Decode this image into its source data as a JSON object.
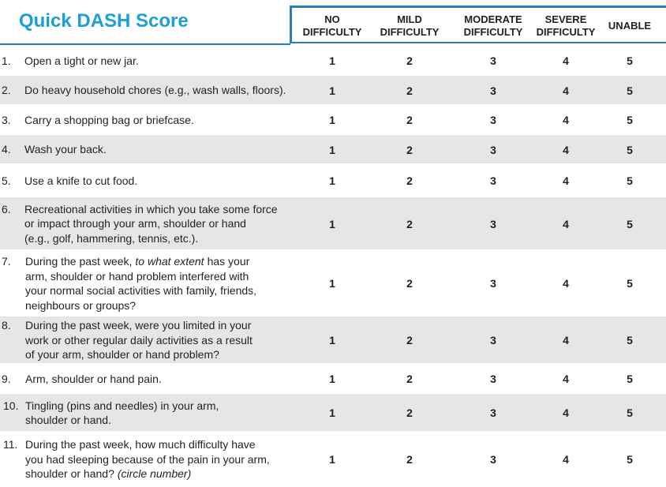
{
  "header": {
    "title": "Quick DASH Score",
    "columns": [
      [
        "NO",
        "DIFFICULTY"
      ],
      [
        "MILD",
        "DIFFICULTY"
      ],
      [
        "MODERATE",
        "DIFFICULTY"
      ],
      [
        "SEVERE",
        "DIFFICULTY"
      ],
      [
        "UNABLE"
      ]
    ]
  },
  "table": {
    "rows": [
      {
        "number": "1.",
        "lines": [
          [
            "Open a tight or new jar."
          ]
        ],
        "values": [
          1,
          2,
          3,
          4,
          5
        ]
      },
      {
        "number": "2.",
        "lines": [
          [
            "Do heavy household chores (e.g., wash walls, floors)."
          ]
        ],
        "values": [
          1,
          2,
          3,
          4,
          5
        ]
      },
      {
        "number": "3.",
        "lines": [
          [
            "Carry a shopping bag or briefcase."
          ]
        ],
        "values": [
          1,
          2,
          3,
          4,
          5
        ]
      },
      {
        "number": "4.",
        "lines": [
          [
            "Wash your back."
          ]
        ],
        "values": [
          1,
          2,
          3,
          4,
          5
        ]
      },
      {
        "number": "5.",
        "lines": [
          [
            "Use a knife to cut food."
          ]
        ],
        "values": [
          1,
          2,
          3,
          4,
          5
        ]
      },
      {
        "number": "6.",
        "lines": [
          [
            "Recreational activities in which you take some force"
          ],
          [
            "or impact through your arm, shoulder or hand"
          ],
          [
            "(e.g., golf, hammering, tennis, etc.)."
          ]
        ],
        "values": [
          1,
          2,
          3,
          4,
          5
        ]
      },
      {
        "number": "7.",
        "lines": [
          [
            "During the past week,",
            {
              "italic": "to what extent"
            },
            "has your"
          ],
          [
            "arm, shoulder or hand problem interfered with"
          ],
          [
            "your normal social activities with family, friends,"
          ],
          [
            "neighbours or groups?"
          ]
        ],
        "values": [
          1,
          2,
          3,
          4,
          5
        ]
      },
      {
        "number": "8.",
        "lines": [
          [
            "During the past week, were you limited in your"
          ],
          [
            "work or other regular daily activities as a result"
          ],
          [
            "of your arm, shoulder or hand problem?"
          ]
        ],
        "values": [
          1,
          2,
          3,
          4,
          5
        ]
      },
      {
        "number": "9.",
        "lines": [
          [
            "Arm, shoulder or hand pain."
          ]
        ],
        "values": [
          1,
          2,
          3,
          4,
          5
        ]
      },
      {
        "number": "10.",
        "lines": [
          [
            "Tingling (pins and needles) in your arm,"
          ],
          [
            "shoulder or hand."
          ]
        ],
        "values": [
          1,
          2,
          3,
          4,
          5
        ]
      },
      {
        "number": "11.",
        "lines": [
          [
            "During the past week, how much difficulty have"
          ],
          [
            "you had sleeping because of the pain in your arm,"
          ],
          [
            "shoulder or hand?",
            {
              "italic": "(circle number)"
            }
          ]
        ],
        "values": [
          1,
          2,
          3,
          4,
          5
        ]
      }
    ]
  }
}
